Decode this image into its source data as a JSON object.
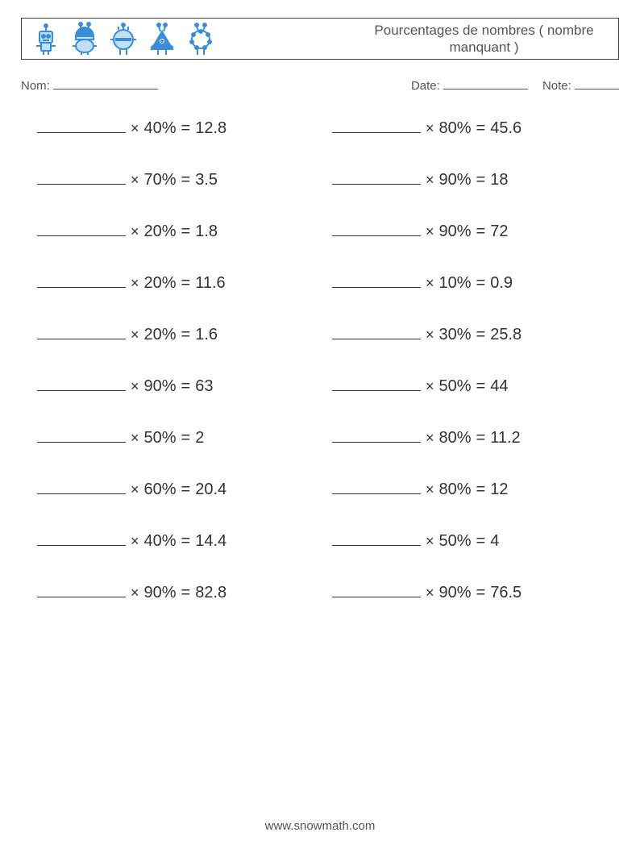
{
  "header": {
    "title": "Pourcentages de nombres ( nombre manquant )"
  },
  "labels": {
    "name": "Nom:",
    "date": "Date:",
    "note": "Note:"
  },
  "blank_widths": {
    "name": 130,
    "date": 105,
    "note": 55
  },
  "problems": {
    "left": [
      {
        "percent": "40%",
        "result": "12.8"
      },
      {
        "percent": "70%",
        "result": "3.5"
      },
      {
        "percent": "20%",
        "result": "1.8"
      },
      {
        "percent": "20%",
        "result": "11.6"
      },
      {
        "percent": "20%",
        "result": "1.6"
      },
      {
        "percent": "90%",
        "result": "63"
      },
      {
        "percent": "50%",
        "result": "2"
      },
      {
        "percent": "60%",
        "result": "20.4"
      },
      {
        "percent": "40%",
        "result": "14.4"
      },
      {
        "percent": "90%",
        "result": "82.8"
      }
    ],
    "right": [
      {
        "percent": "80%",
        "result": "45.6"
      },
      {
        "percent": "90%",
        "result": "18"
      },
      {
        "percent": "90%",
        "result": "72"
      },
      {
        "percent": "10%",
        "result": "0.9"
      },
      {
        "percent": "30%",
        "result": "25.8"
      },
      {
        "percent": "50%",
        "result": "44"
      },
      {
        "percent": "80%",
        "result": "11.2"
      },
      {
        "percent": "80%",
        "result": "12"
      },
      {
        "percent": "50%",
        "result": "4"
      },
      {
        "percent": "90%",
        "result": "76.5"
      }
    ]
  },
  "footer": {
    "url": "www.snowmath.com"
  },
  "colors": {
    "robot_stroke": "#3b8ed6",
    "robot_fill": "#3b8ed6",
    "text": "#333333",
    "border": "#444444",
    "background": "#ffffff"
  },
  "typography": {
    "body_font": "Helvetica Neue, Arial, sans-serif",
    "title_fontsize": 17,
    "label_fontsize": 15,
    "problem_fontsize": 20,
    "footer_fontsize": 15
  }
}
